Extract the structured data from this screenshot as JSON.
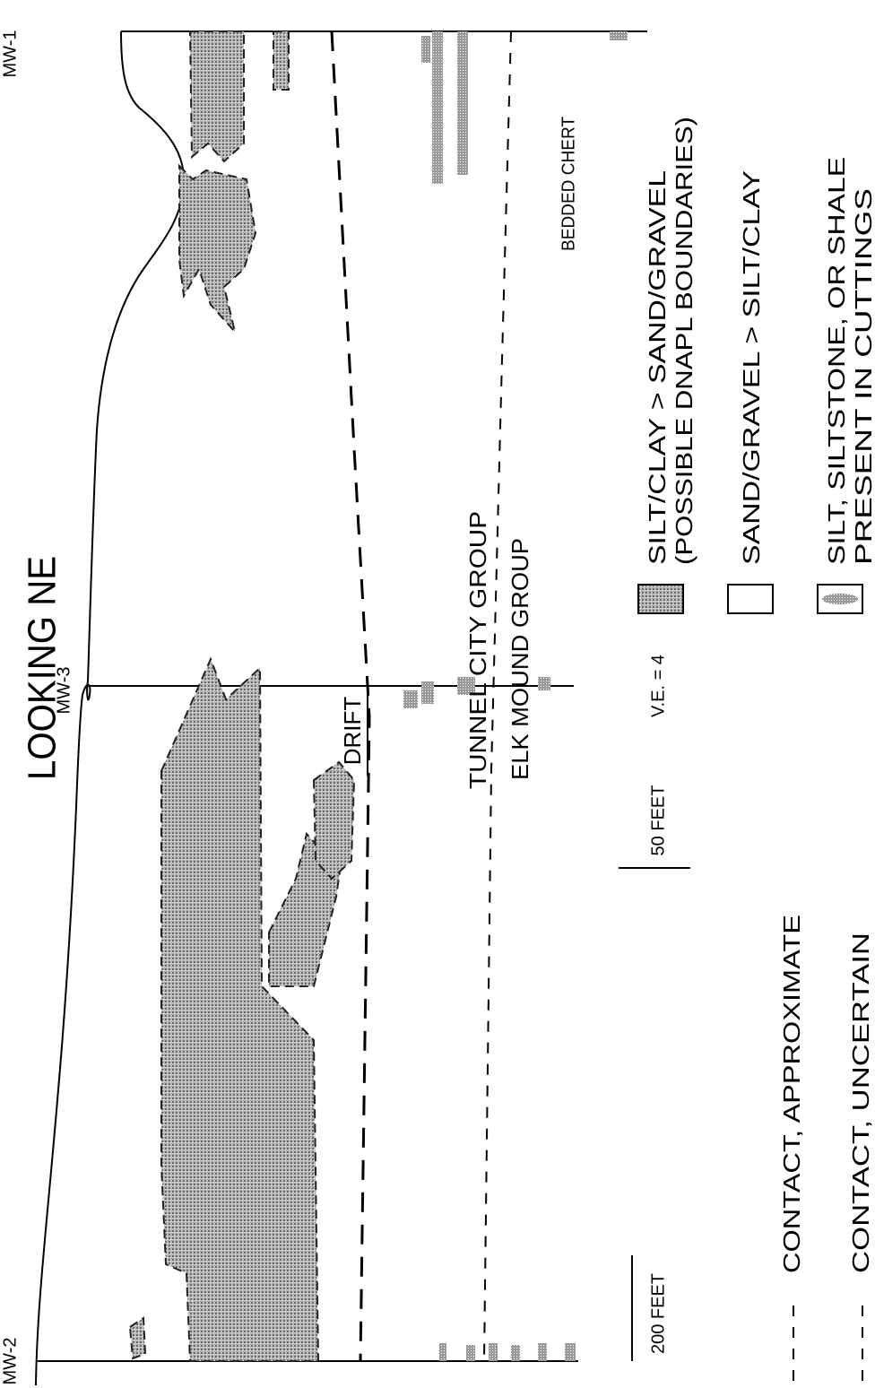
{
  "title": "LOOKING NE",
  "wells": [
    "MW-1",
    "MW-3",
    "MW-2"
  ],
  "units": {
    "drift": "DRIFT",
    "tunnel_city": "TUNNEL CITY GROUP",
    "elk_mound": "ELK MOUND GROUP",
    "chert": "BEDDED CHERT"
  },
  "scale": {
    "horizontal": "200 FEET",
    "vertical": "50 FEET",
    "exaggeration": "V.E. = 4"
  },
  "legend": [
    {
      "lines": [
        "SILT/CLAY > SAND/GRAVEL",
        "(POSSIBLE DNAPL BOUNDARIES)"
      ]
    },
    {
      "lines": [
        "SAND/GRAVEL > SILT/CLAY"
      ]
    },
    {
      "lines": [
        "SILT, SILTSTONE, OR SHALE",
        "PRESENT IN CUTTINGS"
      ]
    },
    {
      "lines": [
        "CONTACT, APPROXIMATE"
      ]
    },
    {
      "lines": [
        "CONTACT, UNCERTAIN"
      ]
    }
  ]
}
